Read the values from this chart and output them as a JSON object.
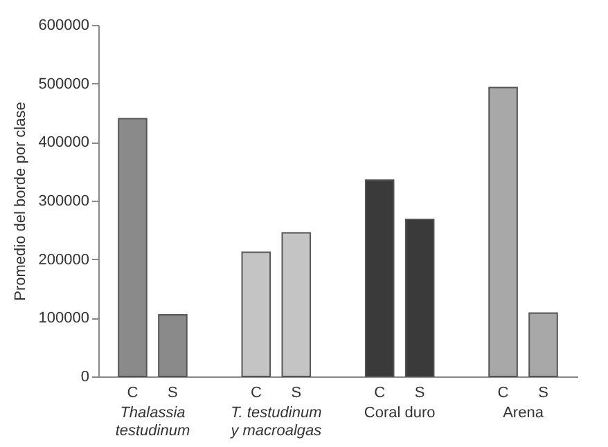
{
  "chart_data": {
    "type": "bar",
    "ylabel": "Promedio del borde por clase",
    "categories": [
      "Thalassia testudinum",
      "T. testudinum y macroalgas",
      "Coral duro",
      "Arena"
    ],
    "series": [
      {
        "name": "C",
        "colors": [
          "#8a8a8a",
          "#c4c4c4",
          "#3a3a3a",
          "#a8a8a8"
        ],
        "values": [
          440000,
          212000,
          335000,
          493000
        ]
      },
      {
        "name": "S",
        "colors": [
          "#8a8a8a",
          "#c4c4c4",
          "#3a3a3a",
          "#a8a8a8"
        ],
        "values": [
          105000,
          245000,
          268000,
          108000
        ]
      }
    ],
    "ylim": [
      0,
      600000
    ],
    "yticks": [
      0,
      100000,
      200000,
      300000,
      400000,
      500000,
      600000
    ],
    "grid": false
  }
}
